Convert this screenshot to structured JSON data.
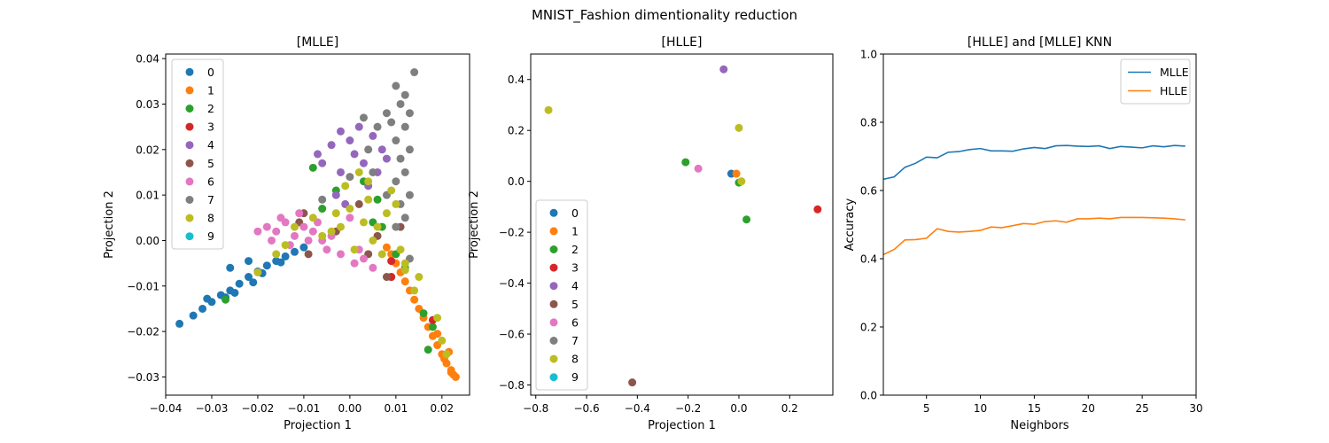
{
  "figure": {
    "suptitle": "MNIST_Fashion dimentionality reduction"
  },
  "colors": [
    "#1f77b4",
    "#ff7f0e",
    "#2ca02c",
    "#d62728",
    "#9467bd",
    "#8c564b",
    "#e377c2",
    "#7f7f7f",
    "#bcbd22",
    "#17becf"
  ],
  "chart_data": [
    {
      "type": "scatter",
      "title": "[MLLE]",
      "xlabel": "Projection 1",
      "ylabel": "Projection 2",
      "xlim": [
        -0.04,
        0.026
      ],
      "ylim": [
        -0.034,
        0.041
      ],
      "xticks": [
        -0.04,
        -0.03,
        -0.02,
        -0.01,
        0.0,
        0.01,
        0.02
      ],
      "xtick_labels": [
        "−0.04",
        "−0.03",
        "−0.02",
        "−0.01",
        "0.00",
        "0.01",
        "0.02"
      ],
      "yticks": [
        -0.03,
        -0.02,
        -0.01,
        0.0,
        0.01,
        0.02,
        0.03,
        0.04
      ],
      "ytick_labels": [
        "−0.03",
        "−0.02",
        "−0.01",
        "0.00",
        "0.01",
        "0.02",
        "0.03",
        "0.04"
      ],
      "legend_position": "upper-left",
      "series": [
        {
          "name": "0",
          "points": [
            [
              -0.037,
              -0.0183
            ],
            [
              -0.034,
              -0.0165
            ],
            [
              -0.032,
              -0.015
            ],
            [
              -0.03,
              -0.0135
            ],
            [
              -0.028,
              -0.012
            ],
            [
              -0.026,
              -0.011
            ],
            [
              -0.024,
              -0.0095
            ],
            [
              -0.022,
              -0.008
            ],
            [
              -0.02,
              -0.0068
            ],
            [
              -0.018,
              -0.0055
            ],
            [
              -0.016,
              -0.0045
            ],
            [
              -0.014,
              -0.0035
            ],
            [
              -0.012,
              -0.0025
            ],
            [
              -0.01,
              -0.0015
            ],
            [
              -0.027,
              -0.0125
            ],
            [
              -0.031,
              -0.0128
            ],
            [
              -0.025,
              -0.0115
            ],
            [
              -0.021,
              -0.0092
            ],
            [
              -0.019,
              -0.0072
            ],
            [
              -0.015,
              -0.0048
            ],
            [
              -0.026,
              -0.006
            ],
            [
              -0.022,
              -0.0045
            ]
          ]
        },
        {
          "name": "1",
          "points": [
            [
              0.023,
              -0.03
            ],
            [
              0.022,
              -0.029
            ],
            [
              0.021,
              -0.027
            ],
            [
              0.02,
              -0.025
            ],
            [
              0.019,
              -0.023
            ],
            [
              0.018,
              -0.021
            ],
            [
              0.017,
              -0.019
            ],
            [
              0.016,
              -0.017
            ],
            [
              0.015,
              -0.015
            ],
            [
              0.014,
              -0.013
            ],
            [
              0.013,
              -0.011
            ],
            [
              0.012,
              -0.009
            ],
            [
              0.011,
              -0.007
            ],
            [
              0.01,
              -0.005
            ],
            [
              0.009,
              -0.003
            ],
            [
              0.008,
              -0.0015
            ],
            [
              0.022,
              -0.0285
            ],
            [
              0.0205,
              -0.026
            ],
            [
              0.0215,
              -0.0245
            ],
            [
              0.019,
              -0.0205
            ],
            [
              0.0225,
              -0.0295
            ]
          ]
        },
        {
          "name": "2",
          "points": [
            [
              -0.027,
              -0.013
            ],
            [
              0.003,
              0.013
            ],
            [
              0.006,
              0.009
            ],
            [
              -0.008,
              0.016
            ],
            [
              -0.006,
              0.007
            ],
            [
              0.01,
              -0.003
            ],
            [
              0.009,
              -0.008
            ],
            [
              0.016,
              -0.016
            ],
            [
              0.018,
              -0.019
            ],
            [
              0.017,
              -0.024
            ],
            [
              0.005,
              0.004
            ],
            [
              0.012,
              -0.006
            ],
            [
              -0.003,
              0.011
            ],
            [
              0.007,
              0.003
            ]
          ]
        },
        {
          "name": "3",
          "points": [
            [
              0.009,
              -0.0045
            ],
            [
              0.018,
              -0.0175
            ],
            [
              0.009,
              -0.008
            ]
          ]
        },
        {
          "name": "4",
          "points": [
            [
              0.0,
              0.022
            ],
            [
              -0.002,
              0.024
            ],
            [
              0.002,
              0.025
            ],
            [
              0.005,
              0.023
            ],
            [
              0.007,
              0.02
            ],
            [
              -0.004,
              0.021
            ],
            [
              0.001,
              0.019
            ],
            [
              0.003,
              0.017
            ],
            [
              -0.002,
              0.015
            ],
            [
              0.006,
              0.015
            ],
            [
              -0.007,
              0.019
            ],
            [
              0.004,
              0.012
            ],
            [
              -0.006,
              0.017
            ],
            [
              0.008,
              0.018
            ],
            [
              -0.003,
              0.01
            ],
            [
              -0.001,
              0.008
            ]
          ]
        },
        {
          "name": "5",
          "points": [
            [
              -0.01,
              0.006
            ],
            [
              -0.011,
              0.004
            ],
            [
              -0.009,
              -0.003
            ],
            [
              -0.003,
              0.002
            ],
            [
              0.002,
              0.008
            ],
            [
              0.006,
              0.001
            ],
            [
              0.008,
              -0.008
            ],
            [
              0.011,
              0.003
            ],
            [
              0.004,
              -0.003
            ]
          ]
        },
        {
          "name": "6",
          "points": [
            [
              -0.018,
              0.003
            ],
            [
              -0.016,
              0.002
            ],
            [
              -0.014,
              0.004
            ],
            [
              -0.012,
              0.001
            ],
            [
              -0.01,
              0.003
            ],
            [
              -0.008,
              0.002
            ],
            [
              -0.006,
              0.0
            ],
            [
              -0.004,
              0.001
            ],
            [
              -0.002,
              -0.003
            ],
            [
              0.001,
              -0.005
            ],
            [
              0.003,
              -0.004
            ],
            [
              0.005,
              -0.006
            ],
            [
              -0.02,
              0.002
            ],
            [
              -0.015,
              0.005
            ],
            [
              -0.011,
              0.006
            ],
            [
              -0.007,
              0.004
            ],
            [
              -0.013,
              -0.001
            ],
            [
              -0.017,
              0.0
            ],
            [
              -0.009,
              0.0
            ],
            [
              0.0,
              0.005
            ],
            [
              -0.005,
              -0.002
            ],
            [
              0.002,
              -0.002
            ]
          ]
        },
        {
          "name": "7",
          "points": [
            [
              0.014,
              0.037
            ],
            [
              0.01,
              0.034
            ],
            [
              0.012,
              0.032
            ],
            [
              0.011,
              0.03
            ],
            [
              0.013,
              0.028
            ],
            [
              0.009,
              0.026
            ],
            [
              0.012,
              0.025
            ],
            [
              0.01,
              0.022
            ],
            [
              0.013,
              0.02
            ],
            [
              0.011,
              0.018
            ],
            [
              0.012,
              0.015
            ],
            [
              0.01,
              0.013
            ],
            [
              0.013,
              0.01
            ],
            [
              0.011,
              0.008
            ],
            [
              0.012,
              0.005
            ],
            [
              0.01,
              0.003
            ],
            [
              0.004,
              0.02
            ],
            [
              0.006,
              0.025
            ],
            [
              0.005,
              0.015
            ],
            [
              0.008,
              0.028
            ],
            [
              -0.006,
              0.009
            ],
            [
              0.0,
              0.014
            ],
            [
              0.003,
              0.027
            ],
            [
              0.013,
              -0.004
            ],
            [
              0.008,
              0.01
            ]
          ]
        },
        {
          "name": "8",
          "points": [
            [
              0.003,
              0.004
            ],
            [
              -0.002,
              0.003
            ],
            [
              0.005,
              0.0
            ],
            [
              -0.006,
              0.001
            ],
            [
              0.001,
              -0.002
            ],
            [
              -0.004,
              0.002
            ],
            [
              0.006,
              0.003
            ],
            [
              0.008,
              0.006
            ],
            [
              0.004,
              0.009
            ],
            [
              0.0,
              0.007
            ],
            [
              -0.003,
              0.006
            ],
            [
              0.007,
              -0.003
            ],
            [
              0.011,
              -0.002
            ],
            [
              0.012,
              -0.005
            ],
            [
              0.015,
              -0.008
            ],
            [
              0.02,
              -0.022
            ],
            [
              0.021,
              -0.025
            ],
            [
              0.019,
              -0.017
            ],
            [
              0.014,
              -0.011
            ],
            [
              -0.02,
              -0.007
            ],
            [
              -0.016,
              -0.003
            ],
            [
              -0.014,
              -0.001
            ],
            [
              -0.012,
              0.003
            ],
            [
              -0.008,
              0.005
            ],
            [
              0.009,
              0.011
            ],
            [
              0.01,
              0.008
            ],
            [
              -0.001,
              0.012
            ],
            [
              0.002,
              0.015
            ],
            [
              0.004,
              0.013
            ],
            [
              0.012,
              -0.0065
            ]
          ]
        },
        {
          "name": "9",
          "points": []
        }
      ]
    },
    {
      "type": "scatter",
      "title": "[HLLE]",
      "xlabel": "Projection 1",
      "ylabel": "Projection 2",
      "xlim": [
        -0.82,
        0.37
      ],
      "ylim": [
        -0.84,
        0.5
      ],
      "xticks": [
        -0.8,
        -0.6,
        -0.4,
        -0.2,
        0.0,
        0.2
      ],
      "xtick_labels": [
        "−0.8",
        "−0.6",
        "−0.4",
        "−0.2",
        "0.0",
        "0.2"
      ],
      "yticks": [
        -0.8,
        -0.6,
        -0.4,
        -0.2,
        0.0,
        0.2,
        0.4
      ],
      "ytick_labels": [
        "−0.8",
        "−0.6",
        "−0.4",
        "−0.2",
        "0.0",
        "0.2",
        "0.4"
      ],
      "legend_position": "lower-left",
      "series": [
        {
          "name": "0",
          "points": [
            [
              -0.03,
              0.03
            ]
          ]
        },
        {
          "name": "1",
          "points": [
            [
              -0.01,
              0.03
            ]
          ]
        },
        {
          "name": "2",
          "points": [
            [
              -0.21,
              0.075
            ],
            [
              0.0,
              -0.005
            ],
            [
              0.03,
              -0.15
            ]
          ]
        },
        {
          "name": "3",
          "points": [
            [
              0.31,
              -0.11
            ]
          ]
        },
        {
          "name": "4",
          "points": [
            [
              -0.06,
              0.44
            ]
          ]
        },
        {
          "name": "5",
          "points": [
            [
              -0.42,
              -0.79
            ]
          ]
        },
        {
          "name": "6",
          "points": [
            [
              -0.16,
              0.05
            ]
          ]
        },
        {
          "name": "7",
          "points": []
        },
        {
          "name": "8",
          "points": [
            [
              -0.75,
              0.28
            ],
            [
              0.0,
              0.21
            ],
            [
              0.01,
              0.0
            ]
          ]
        },
        {
          "name": "9",
          "points": []
        }
      ]
    },
    {
      "type": "line",
      "title": "[HLLE] and [MLLE] KNN",
      "xlabel": "Neighbors",
      "ylabel": "Accuracy",
      "xlim": [
        1,
        30
      ],
      "ylim": [
        0.0,
        1.0
      ],
      "xticks": [
        5,
        10,
        15,
        20,
        25,
        30
      ],
      "xtick_labels": [
        "5",
        "10",
        "15",
        "20",
        "25",
        "30"
      ],
      "yticks": [
        0.0,
        0.2,
        0.4,
        0.6,
        0.8,
        1.0
      ],
      "ytick_labels": [
        "0.0",
        "0.2",
        "0.4",
        "0.6",
        "0.8",
        "1.0"
      ],
      "legend_position": "upper-right",
      "x": [
        1,
        2,
        3,
        4,
        5,
        6,
        7,
        8,
        9,
        10,
        11,
        12,
        13,
        14,
        15,
        16,
        17,
        18,
        19,
        20,
        21,
        22,
        23,
        24,
        25,
        26,
        27,
        28,
        29
      ],
      "series": [
        {
          "name": "MLLE",
          "values": [
            0.633,
            0.64,
            0.668,
            0.68,
            0.698,
            0.696,
            0.712,
            0.714,
            0.72,
            0.723,
            0.716,
            0.716,
            0.715,
            0.722,
            0.726,
            0.723,
            0.731,
            0.732,
            0.73,
            0.729,
            0.731,
            0.723,
            0.729,
            0.727,
            0.725,
            0.731,
            0.728,
            0.732,
            0.73
          ]
        },
        {
          "name": "HLLE",
          "values": [
            0.412,
            0.427,
            0.455,
            0.456,
            0.46,
            0.488,
            0.48,
            0.478,
            0.48,
            0.483,
            0.493,
            0.491,
            0.497,
            0.503,
            0.501,
            0.509,
            0.511,
            0.507,
            0.517,
            0.517,
            0.519,
            0.517,
            0.521,
            0.521,
            0.521,
            0.52,
            0.519,
            0.517,
            0.514
          ]
        }
      ]
    }
  ]
}
